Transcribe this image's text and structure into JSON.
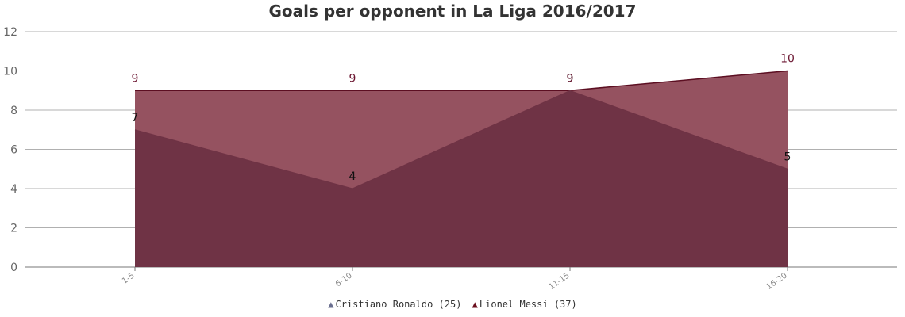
{
  "chart_data": {
    "type": "area",
    "title": "Goals per opponent in La Liga 2016/2017",
    "categories": [
      "1-5",
      "6-10",
      "11-15",
      "16-20"
    ],
    "ylim": [
      0,
      12
    ],
    "yticks": [
      0,
      2,
      4,
      6,
      8,
      10,
      12
    ],
    "grid": true,
    "legend_position": "bottom",
    "series": [
      {
        "name": "Cristiano Ronaldo",
        "legend_label": "Cristiano Ronaldo (25)",
        "values": [
          7,
          4,
          9,
          5
        ],
        "color": "#6f3345",
        "legend_color": "#6a6f8f",
        "label_color": "#111111"
      },
      {
        "name": "Lionel Messi",
        "legend_label": "Lionel Messi (37)",
        "values": [
          9,
          9,
          9,
          10
        ],
        "color": "#955260",
        "line_color": "#5c0f22",
        "legend_color": "#6b0f1e",
        "label_color": "#6b1530"
      }
    ]
  }
}
